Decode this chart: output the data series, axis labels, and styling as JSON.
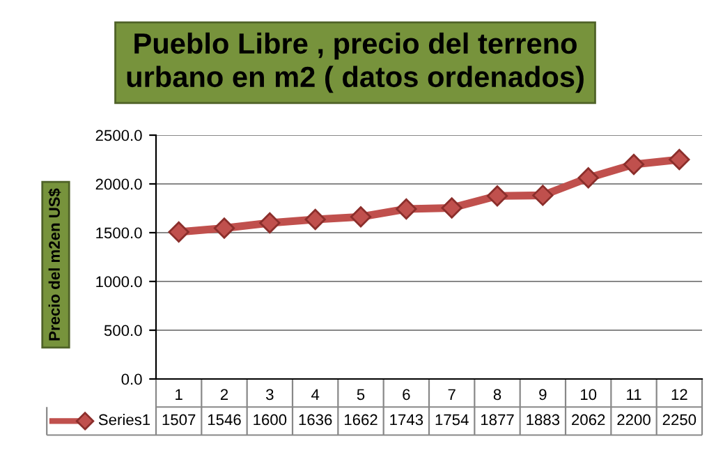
{
  "chart_data": {
    "type": "line",
    "title": "Pueblo Libre , precio del terreno\nurbano en m2 ( datos ordenados)",
    "ylabel": "Precio del m2en US$",
    "categories": [
      "1",
      "2",
      "3",
      "4",
      "5",
      "6",
      "7",
      "8",
      "9",
      "10",
      "11",
      "12"
    ],
    "series": [
      {
        "name": "Series1",
        "color": "#c0504d",
        "values": [
          1507,
          1546,
          1600,
          1636,
          1662,
          1743,
          1754,
          1877,
          1883,
          2062,
          2200,
          2250
        ]
      }
    ],
    "ylim": [
      0,
      2500
    ],
    "yticks": [
      {
        "value": 0,
        "label": "0.0"
      },
      {
        "value": 500,
        "label": "500.0"
      },
      {
        "value": 1000,
        "label": "1000.0"
      },
      {
        "value": 1500,
        "label": "1500.0"
      },
      {
        "value": 2000,
        "label": "2000.0"
      },
      {
        "value": 2500,
        "label": "2500.0"
      }
    ],
    "grid": "y",
    "marker": "diamond",
    "line_style": "solid",
    "data_labels": true,
    "legend": "bottom"
  }
}
